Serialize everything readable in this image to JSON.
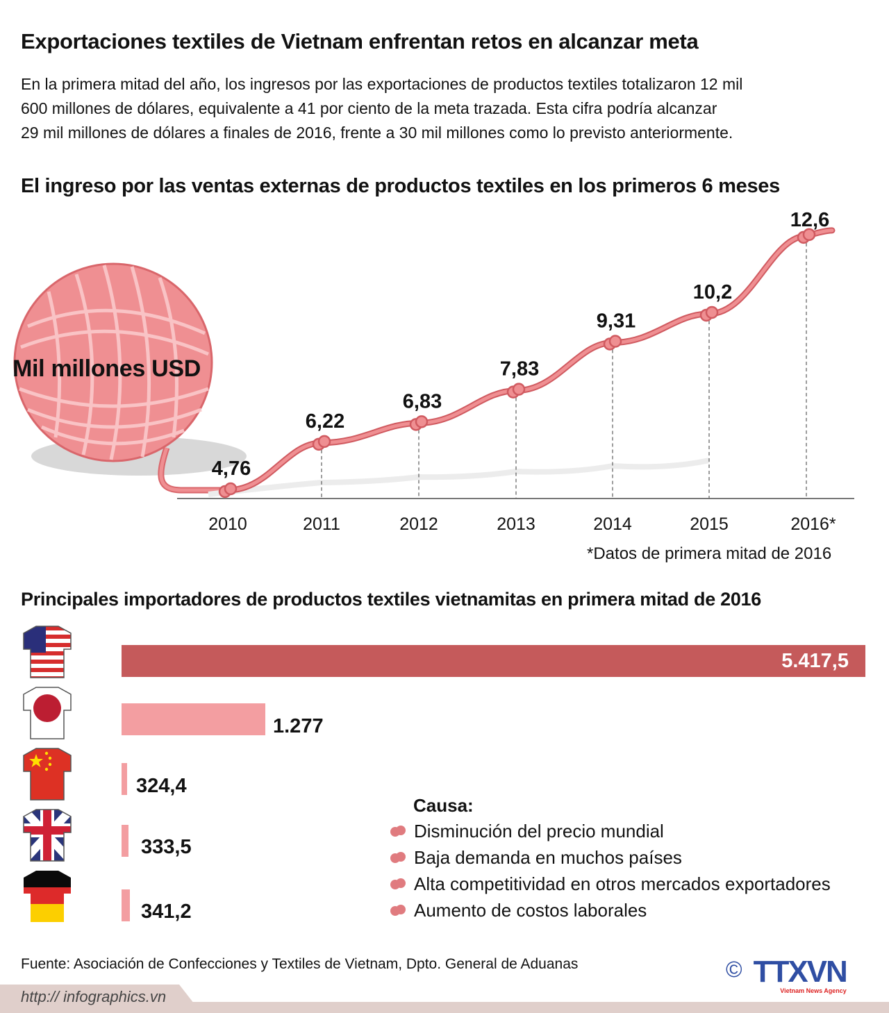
{
  "title": "Exportaciones textiles de Vietnam enfrentan retos en alcanzar meta",
  "intro": [
    "En la primera mitad del año, los ingresos por las exportaciones de productos textiles totalizaron 12 mil",
    "600 millones de dólares, equivalente a 41 por ciento de la meta trazada. Esta cifra podría alcanzar",
    "29 mil millones de dólares a finales de 2016, frente a 30 mil millones como lo previsto anteriormente."
  ],
  "colors": {
    "line": "#e07b7f",
    "bar_top": "#c55a5b",
    "bar_other": "#f39ea1",
    "yarn": "#ef8f92"
  },
  "chart_data": [
    {
      "type": "line",
      "title": "El ingreso por las ventas externas de productos textiles en los primeros 6 meses",
      "ylabel": "Mil millones USD",
      "categories": [
        "2010",
        "2011",
        "2012",
        "2013",
        "2014",
        "2015",
        "2016*"
      ],
      "values": [
        4.76,
        6.22,
        6.83,
        7.83,
        9.31,
        10.2,
        12.6
      ],
      "data_labels": [
        "4,76",
        "6,22",
        "6,83",
        "7,83",
        "9,31",
        "10,2",
        "12,6"
      ],
      "note": "*Datos de primera mitad de 2016",
      "grid": false
    },
    {
      "type": "bar",
      "orientation": "horizontal",
      "title": "Principales importadores de productos textiles vietnamitas en primera mitad de 2016",
      "categories": [
        "flag-usa",
        "flag-japan",
        "flag-china",
        "flag-uk",
        "flag-germany"
      ],
      "values": [
        5417.5,
        1277,
        324.4,
        333.5,
        341.2
      ],
      "data_labels": [
        "5.417,5",
        "1.277",
        "324,4",
        "333,5",
        "341,2"
      ]
    }
  ],
  "causes": {
    "heading": "Causa:",
    "items": [
      "Disminución del precio mundial",
      "Baja demanda en muchos países",
      "Alta competitividad en otros mercados exportadores",
      "Aumento de costos laborales"
    ]
  },
  "footer": {
    "source": "Fuente: Asociación de Confecciones y Textiles de Vietnam, Dpto. General de Aduanas",
    "url": "http:// infographics.vn",
    "copyright": "©",
    "logo": "TTXVN",
    "logo_sub": "Vietnam News Agency"
  }
}
